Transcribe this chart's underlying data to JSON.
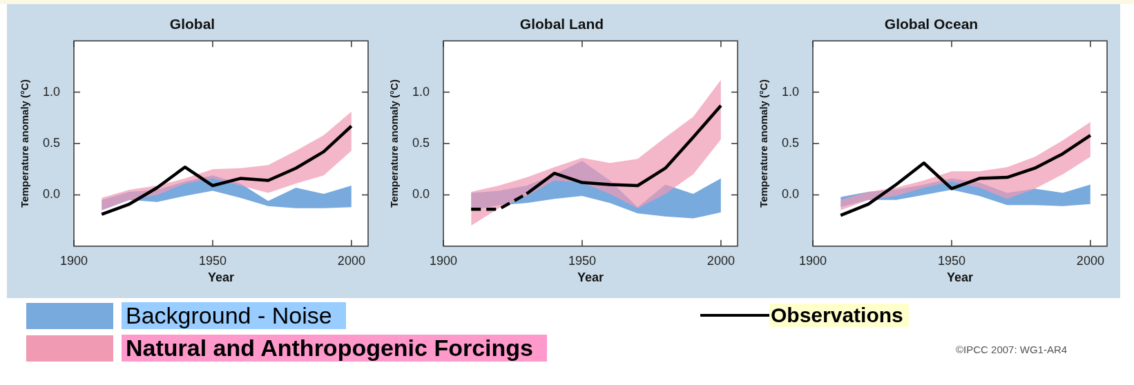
{
  "chart_data": [
    {
      "type": "line",
      "title": "Global",
      "xlabel": "Year",
      "ylabel": "Temperature anomaly (°C)",
      "x": [
        1910,
        1920,
        1930,
        1940,
        1950,
        1960,
        1970,
        1980,
        1990,
        2000
      ],
      "xlim": [
        1900,
        2006
      ],
      "xticks": [
        1900,
        1950,
        2000
      ],
      "ylim": [
        -0.5,
        1.5
      ],
      "yticks": [
        {
          "value": 0,
          "label": "0.0"
        },
        {
          "value": 0.5,
          "label": "0.5"
        },
        {
          "value": 1,
          "label": "1.0"
        }
      ],
      "legend": "bottom",
      "annotations": [
        "©IPCC 2007: WG1-AR4"
      ],
      "series": [
        {
          "name": "Background - Noise",
          "color": "#78aade",
          "values": [
            null,
            null,
            null,
            null,
            null,
            null,
            null,
            null,
            null,
            null
          ],
          "lower": [
            -0.15,
            -0.05,
            -0.07,
            -0.01,
            0.04,
            -0.03,
            -0.11,
            -0.13,
            -0.13,
            -0.12
          ],
          "upper": [
            -0.05,
            0.03,
            0.05,
            0.13,
            0.19,
            0.11,
            -0.06,
            0.07,
            0.01,
            0.09
          ]
        },
        {
          "name": "Natural and Anthropogenic Forcings",
          "color": "#f09ab4",
          "values": [
            null,
            null,
            null,
            null,
            null,
            null,
            null,
            null,
            null,
            null
          ],
          "lower": [
            -0.15,
            -0.05,
            0.0,
            0.11,
            0.16,
            0.09,
            0.02,
            0.11,
            0.19,
            0.43
          ],
          "upper": [
            -0.03,
            0.05,
            0.09,
            0.16,
            0.25,
            0.26,
            0.29,
            0.43,
            0.58,
            0.81
          ]
        },
        {
          "name": "Observations",
          "color": "#000000",
          "values": [
            -0.19,
            -0.09,
            0.07,
            0.27,
            0.09,
            0.16,
            0.14,
            0.26,
            0.42,
            0.67
          ]
        }
      ]
    },
    {
      "type": "line",
      "title": "Global Land",
      "xlabel": "Year",
      "ylabel": "Temperature anomaly (°C)",
      "x": [
        1910,
        1920,
        1930,
        1940,
        1950,
        1960,
        1970,
        1980,
        1990,
        2000
      ],
      "xlim": [
        1900,
        2006
      ],
      "xticks": [
        1900,
        1950,
        2000
      ],
      "ylim": [
        -0.5,
        1.5
      ],
      "yticks": [
        {
          "value": 0,
          "label": "0.0"
        },
        {
          "value": 0.5,
          "label": "0.5"
        },
        {
          "value": 1,
          "label": "1.0"
        }
      ],
      "series": [
        {
          "color": "#78aade",
          "values": [
            null,
            null,
            null,
            null,
            null,
            null,
            null,
            null,
            null,
            null
          ],
          "lower": [
            -0.15,
            -0.1,
            -0.08,
            -0.04,
            -0.01,
            -0.08,
            -0.18,
            -0.21,
            -0.23,
            -0.17
          ],
          "upper": [
            0.02,
            0.04,
            0.09,
            0.2,
            0.33,
            0.14,
            -0.12,
            0.1,
            0.01,
            0.16
          ]
        },
        {
          "color": "#f09ab4",
          "values": [
            null,
            null,
            null,
            null,
            null,
            null,
            null,
            null,
            null,
            null
          ],
          "lower": [
            -0.3,
            -0.13,
            -0.01,
            0.14,
            0.12,
            0.01,
            -0.13,
            0.01,
            0.2,
            0.54
          ],
          "upper": [
            0.03,
            0.09,
            0.17,
            0.27,
            0.36,
            0.31,
            0.35,
            0.56,
            0.76,
            1.12
          ]
        },
        {
          "color": "#000000",
          "line_style": "dashed",
          "values": [
            -0.14,
            -0.14,
            0.01,
            null,
            null,
            null,
            null,
            null,
            null,
            null
          ]
        },
        {
          "color": "#000000",
          "values": [
            null,
            null,
            0.01,
            0.21,
            0.12,
            0.1,
            0.09,
            0.26,
            0.56,
            0.87
          ]
        }
      ]
    },
    {
      "type": "line",
      "title": "Global Ocean",
      "xlabel": "Year",
      "ylabel": "Temperature anomaly (°C)",
      "x": [
        1910,
        1920,
        1930,
        1940,
        1950,
        1960,
        1970,
        1980,
        1990,
        2000
      ],
      "xlim": [
        1900,
        2006
      ],
      "xticks": [
        1900,
        1950,
        2000
      ],
      "ylim": [
        -0.5,
        1.5
      ],
      "yticks": [
        {
          "value": 0,
          "label": "0.0"
        },
        {
          "value": 0.5,
          "label": "0.5"
        },
        {
          "value": 1,
          "label": "1.0"
        }
      ],
      "series": [
        {
          "color": "#78aade",
          "values": [
            null,
            null,
            null,
            null,
            null,
            null,
            null,
            null,
            null,
            null
          ],
          "lower": [
            -0.12,
            -0.05,
            -0.05,
            0.0,
            0.05,
            -0.01,
            -0.1,
            -0.1,
            -0.11,
            -0.09
          ],
          "upper": [
            -0.02,
            0.03,
            0.05,
            0.1,
            0.16,
            0.12,
            0.02,
            0.06,
            0.02,
            0.1
          ]
        },
        {
          "color": "#f09ab4",
          "values": [
            null,
            null,
            null,
            null,
            null,
            null,
            null,
            null,
            null,
            null
          ],
          "lower": [
            -0.15,
            -0.05,
            -0.01,
            0.07,
            0.13,
            0.07,
            -0.04,
            0.06,
            0.2,
            0.37
          ],
          "upper": [
            -0.05,
            0.03,
            0.07,
            0.14,
            0.23,
            0.23,
            0.27,
            0.37,
            0.53,
            0.71
          ]
        },
        {
          "color": "#000000",
          "values": [
            -0.2,
            -0.09,
            0.1,
            0.31,
            0.06,
            0.16,
            0.17,
            0.26,
            0.4,
            0.58
          ]
        }
      ]
    }
  ]
}
